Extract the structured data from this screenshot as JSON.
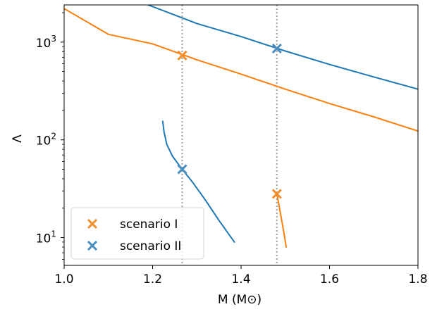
{
  "chart_data": {
    "type": "line",
    "xlabel": "M (M⊙)",
    "ylabel": "Λ",
    "xlim": [
      1.0,
      1.8
    ],
    "ylim": [
      5.2,
      2400
    ],
    "yscale": "log",
    "xticks": [
      {
        "value": 1.0,
        "label": "1.0"
      },
      {
        "value": 1.2,
        "label": "1.2"
      },
      {
        "value": 1.4,
        "label": "1.4"
      },
      {
        "value": 1.6,
        "label": "1.6"
      },
      {
        "value": 1.8,
        "label": "1.8"
      }
    ],
    "yticks": [
      {
        "value": 10,
        "base": "10",
        "exp": "1"
      },
      {
        "value": 100,
        "base": "10",
        "exp": "2"
      },
      {
        "value": 1000,
        "base": "10",
        "exp": "3"
      }
    ],
    "grid": false,
    "legend_position": "lower-left",
    "vlines": [
      {
        "x": 1.267,
        "color": "#a0a0a0",
        "style": "dotted"
      },
      {
        "x": 1.481,
        "color": "#a0a0a0",
        "style": "dotted"
      }
    ],
    "series": [
      {
        "color": "#ff7f0e",
        "points": [
          [
            1.0,
            2200
          ],
          [
            1.1,
            1200
          ],
          [
            1.2,
            960
          ],
          [
            1.3,
            660
          ],
          [
            1.4,
            470
          ],
          [
            1.5,
            330
          ],
          [
            1.6,
            235
          ],
          [
            1.7,
            172
          ],
          [
            1.8,
            123
          ]
        ]
      },
      {
        "color": "#1f77b4",
        "points": [
          [
            1.19,
            2400
          ],
          [
            1.3,
            1550
          ],
          [
            1.4,
            1140
          ],
          [
            1.5,
            810
          ],
          [
            1.6,
            590
          ],
          [
            1.7,
            440
          ],
          [
            1.8,
            330
          ]
        ]
      },
      {
        "color": "#1f77b4",
        "points": [
          [
            1.223,
            155
          ],
          [
            1.226,
            120
          ],
          [
            1.232,
            90
          ],
          [
            1.245,
            68
          ],
          [
            1.267,
            50
          ],
          [
            1.29,
            37
          ],
          [
            1.32,
            24
          ],
          [
            1.35,
            15
          ],
          [
            1.385,
            9
          ]
        ]
      },
      {
        "color": "#ff7f0e",
        "points": [
          [
            1.481,
            28
          ],
          [
            1.487,
            20
          ],
          [
            1.493,
            14
          ],
          [
            1.498,
            10.5
          ],
          [
            1.502,
            8
          ]
        ]
      }
    ],
    "markers": [
      {
        "scenario": 0,
        "x": 1.267,
        "y": 730
      },
      {
        "scenario": 1,
        "x": 1.481,
        "y": 860
      },
      {
        "scenario": 1,
        "x": 1.267,
        "y": 50
      },
      {
        "scenario": 0,
        "x": 1.481,
        "y": 28
      }
    ],
    "scenarios": [
      {
        "name": "scenario I",
        "color": "#f28e2b"
      },
      {
        "name": "scenario II",
        "color": "#4c8dc0"
      }
    ]
  }
}
